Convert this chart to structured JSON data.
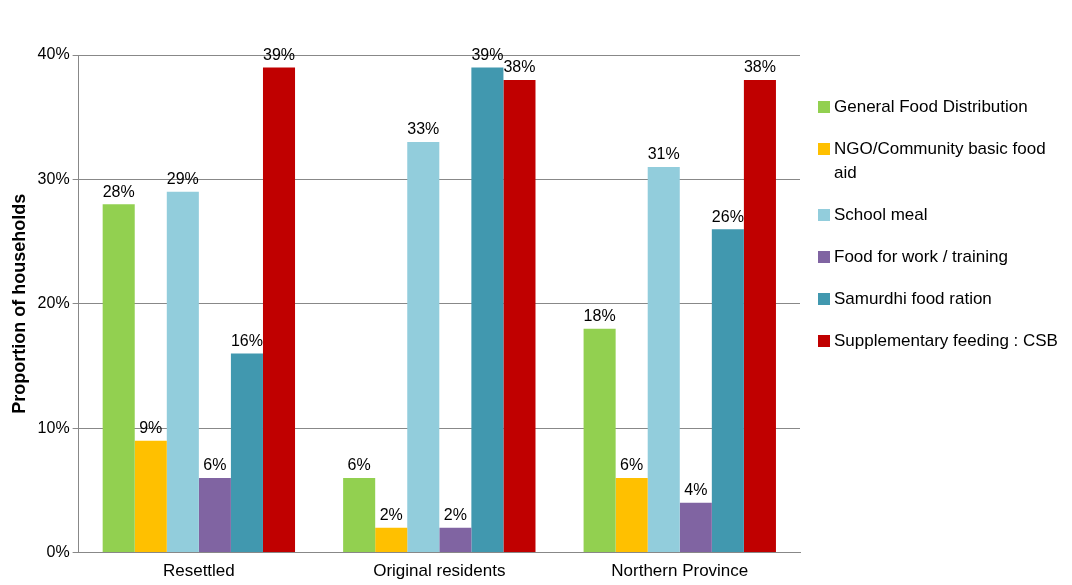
{
  "chart_data": {
    "type": "bar",
    "ylabel": "Proportion of households",
    "categories": [
      "Resettled",
      "Original residents",
      "Northern Province"
    ],
    "series": [
      {
        "name": "General Food Distribution",
        "color": "#92d050",
        "values": [
          28,
          6,
          18
        ],
        "value_labels": [
          "28%",
          "6%",
          "18%"
        ]
      },
      {
        "name": "NGO/Community basic food aid",
        "color": "#ffc000",
        "values": [
          9,
          2,
          6
        ],
        "value_labels": [
          "9%",
          "2%",
          "6%"
        ]
      },
      {
        "name": "School meal",
        "color": "#92cddc",
        "values": [
          29,
          33,
          31
        ],
        "value_labels": [
          "29%",
          "33%",
          "31%"
        ]
      },
      {
        "name": "Food for work / training",
        "color": "#8064a2",
        "values": [
          6,
          2,
          4
        ],
        "value_labels": [
          "6%",
          "2%",
          "4%"
        ]
      },
      {
        "name": "Samurdhi food ration",
        "color": "#4198af",
        "values": [
          16,
          39,
          26
        ],
        "value_labels": [
          "16%",
          "39%",
          "26%"
        ]
      },
      {
        "name": "Supplementary feeding : CSB",
        "color": "#c00000",
        "values": [
          39,
          38,
          38
        ],
        "value_labels": [
          "39%",
          "38%",
          "38%"
        ]
      }
    ],
    "ylim": [
      0,
      40
    ],
    "yticks": [
      {
        "value": 0,
        "label": "0%"
      },
      {
        "value": 10,
        "label": "10%"
      },
      {
        "value": 20,
        "label": "20%"
      },
      {
        "value": 30,
        "label": "30%"
      },
      {
        "value": 40,
        "label": "40%"
      }
    ],
    "grid": "y",
    "legend": "right"
  }
}
